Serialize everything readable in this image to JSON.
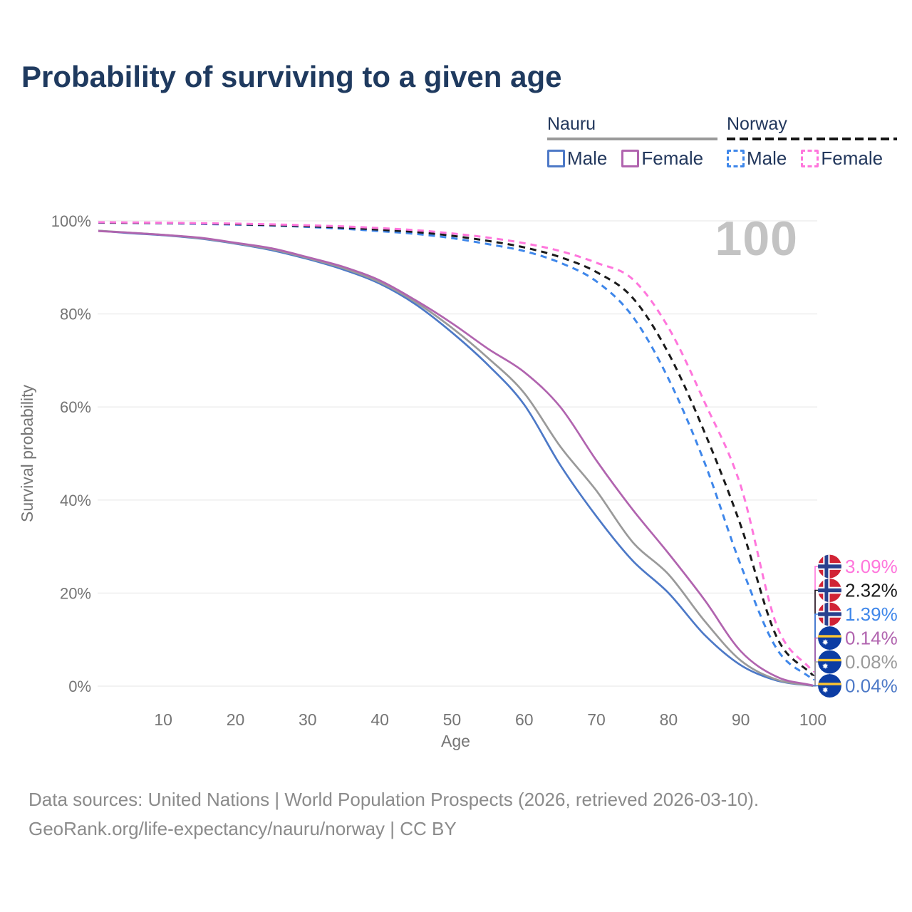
{
  "title": "Probability of surviving to a given age",
  "watermark": "100",
  "legend": {
    "groups": [
      {
        "label": "Nauru",
        "line_style": "solid",
        "underline_color": "#9a9a9a",
        "items": [
          {
            "label": "Male",
            "color": "#4d79c7",
            "dashed": false
          },
          {
            "label": "Female",
            "color": "#b164af",
            "dashed": false
          }
        ]
      },
      {
        "label": "Norway",
        "line_style": "dashed",
        "underline_color": "#161616",
        "items": [
          {
            "label": "Male",
            "color": "#3f87ea",
            "dashed": true
          },
          {
            "label": "Female",
            "color": "#ff76dc",
            "dashed": true
          }
        ]
      }
    ]
  },
  "flags": {
    "norway": {
      "red": "#d12335",
      "blue": "#28418f",
      "white": "#ffffff"
    },
    "nauru": {
      "blue": "#0c3da4",
      "yellow": "#fdc531",
      "star": "#ffffff"
    }
  },
  "chart_data": {
    "type": "line",
    "title": "Probability of surviving to a given age",
    "xlabel": "Age",
    "ylabel": "Survival probability",
    "xlim": [
      1,
      100
    ],
    "ylim": [
      0,
      100
    ],
    "grid": "horizontal",
    "legend_position": "top-right",
    "yticks": [
      {
        "value": 0,
        "label": "0%"
      },
      {
        "value": 20,
        "label": "20%"
      },
      {
        "value": 40,
        "label": "40%"
      },
      {
        "value": 60,
        "label": "60%"
      },
      {
        "value": 80,
        "label": "80%"
      },
      {
        "value": 100,
        "label": "100%"
      }
    ],
    "xticks": [
      {
        "value": 10,
        "label": "10"
      },
      {
        "value": 20,
        "label": "20"
      },
      {
        "value": 30,
        "label": "30"
      },
      {
        "value": 40,
        "label": "40"
      },
      {
        "value": 50,
        "label": "50"
      },
      {
        "value": 60,
        "label": "60"
      },
      {
        "value": 70,
        "label": "70"
      },
      {
        "value": 80,
        "label": "80"
      },
      {
        "value": 90,
        "label": "90"
      },
      {
        "value": 100,
        "label": "100"
      }
    ],
    "x": [
      1,
      5,
      10,
      15,
      20,
      25,
      30,
      35,
      40,
      45,
      50,
      55,
      60,
      65,
      70,
      75,
      80,
      85,
      90,
      95,
      100
    ],
    "series": [
      {
        "name": "Nauru Male",
        "country": "Nauru",
        "sex": "male",
        "flag": "nauru",
        "color": "#4d79c7",
        "dashed": false,
        "end_label": "0.04%",
        "values": [
          97.9,
          97.4,
          96.9,
          96.2,
          95.1,
          93.7,
          91.8,
          89.5,
          86.5,
          82.0,
          76.0,
          69.0,
          60.5,
          47.5,
          36.5,
          27.0,
          20.0,
          11.0,
          4.5,
          1.2,
          0.04
        ]
      },
      {
        "name": "Nauru Both sexes",
        "country": "Nauru",
        "sex": "both",
        "flag": "nauru",
        "color": "#9a9a9a",
        "dashed": false,
        "end_label": "0.08%",
        "values": [
          97.9,
          97.5,
          97.0,
          96.3,
          95.2,
          93.9,
          92.0,
          89.8,
          86.8,
          82.5,
          77.0,
          70.5,
          63.0,
          51.5,
          42.0,
          31.0,
          24.0,
          14.0,
          5.5,
          1.4,
          0.08
        ]
      },
      {
        "name": "Nauru Female",
        "country": "Nauru",
        "sex": "female",
        "flag": "nauru",
        "color": "#b164af",
        "dashed": false,
        "end_label": "0.14%",
        "values": [
          97.8,
          97.5,
          97.0,
          96.4,
          95.3,
          94.1,
          92.2,
          90.1,
          87.2,
          82.9,
          78.0,
          72.5,
          67.5,
          60.0,
          48.5,
          38.0,
          28.5,
          18.5,
          7.5,
          2.0,
          0.14
        ]
      },
      {
        "name": "Norway Male",
        "country": "Norway",
        "sex": "male",
        "flag": "norway",
        "color": "#3f87ea",
        "dashed": true,
        "end_label": "1.39%",
        "values": [
          99.6,
          99.55,
          99.5,
          99.35,
          99.2,
          99.0,
          98.7,
          98.3,
          97.8,
          97.2,
          96.3,
          95.0,
          93.5,
          91.0,
          87.0,
          79.5,
          66.0,
          48.0,
          26.0,
          8.0,
          1.39
        ]
      },
      {
        "name": "Norway Both sexes",
        "country": "Norway",
        "sex": "both",
        "flag": "norway",
        "color": "#1a1a1a",
        "dashed": true,
        "end_label": "2.32%",
        "values": [
          99.65,
          99.6,
          99.55,
          99.45,
          99.3,
          99.1,
          98.85,
          98.55,
          98.1,
          97.6,
          96.8,
          95.7,
          94.3,
          92.2,
          89.0,
          83.5,
          71.5,
          54.5,
          34.5,
          10.5,
          2.32
        ]
      },
      {
        "name": "Norway Female",
        "country": "Norway",
        "sex": "female",
        "flag": "norway",
        "color": "#ff76dc",
        "dashed": true,
        "end_label": "3.09%",
        "values": [
          99.7,
          99.67,
          99.6,
          99.5,
          99.4,
          99.25,
          99.05,
          98.8,
          98.45,
          98.0,
          97.3,
          96.4,
          95.2,
          93.5,
          91.0,
          87.5,
          77.0,
          61.0,
          43.0,
          13.0,
          3.09
        ]
      }
    ]
  },
  "footer": {
    "line1": "Data sources: United Nations | World Population Prospects (2026, retrieved 2026-03-10).",
    "line2": "GeoRank.org/life-expectancy/nauru/norway | CC BY"
  }
}
